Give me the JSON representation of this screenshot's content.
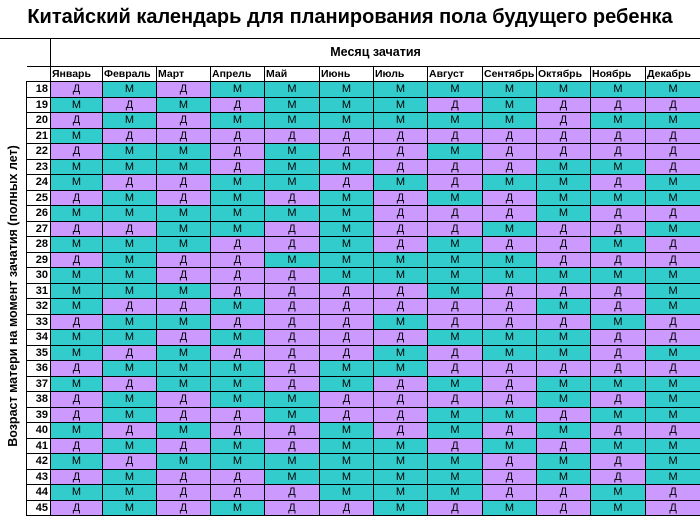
{
  "title": "Китайский календарь для планирования пола будущего ребенка",
  "column_group_label": "Месяц зачатия",
  "row_group_label": "Возраст матери на момент зачатия (полных лет)",
  "months": [
    "Январь",
    "Февраль",
    "Март",
    "Апрель",
    "Май",
    "Июнь",
    "Июль",
    "Август",
    "Сентябрь",
    "Октябрь",
    "Ноябрь",
    "Декабрь"
  ],
  "colors": {
    "M": "#33CCCC",
    "D": "#CC99FF"
  },
  "rows": [
    {
      "age": "18",
      "cells": [
        "Д",
        "М",
        "Д",
        "М",
        "М",
        "М",
        "М",
        "М",
        "М",
        "М",
        "М",
        "М"
      ]
    },
    {
      "age": "19",
      "cells": [
        "М",
        "Д",
        "М",
        "Д",
        "М",
        "М",
        "М",
        "Д",
        "М",
        "Д",
        "Д",
        "Д"
      ]
    },
    {
      "age": "20",
      "cells": [
        "Д",
        "М",
        "Д",
        "М",
        "М",
        "М",
        "М",
        "М",
        "М",
        "Д",
        "М",
        "М"
      ]
    },
    {
      "age": "21",
      "cells": [
        "М",
        "Д",
        "Д",
        "Д",
        "Д",
        "Д",
        "Д",
        "Д",
        "Д",
        "Д",
        "Д",
        "Д"
      ]
    },
    {
      "age": "22",
      "cells": [
        "Д",
        "М",
        "М",
        "Д",
        "М",
        "Д",
        "Д",
        "М",
        "Д",
        "Д",
        "Д",
        "Д"
      ]
    },
    {
      "age": "23",
      "cells": [
        "М",
        "М",
        "М",
        "Д",
        "М",
        "М",
        "Д",
        "Д",
        "Д",
        "М",
        "М",
        "Д"
      ]
    },
    {
      "age": "24",
      "cells": [
        "М",
        "Д",
        "Д",
        "М",
        "М",
        "Д",
        "М",
        "Д",
        "М",
        "М",
        "Д",
        "М"
      ]
    },
    {
      "age": "25",
      "cells": [
        "Д",
        "М",
        "Д",
        "М",
        "Д",
        "М",
        "Д",
        "М",
        "Д",
        "М",
        "М",
        "М"
      ]
    },
    {
      "age": "26",
      "cells": [
        "М",
        "М",
        "М",
        "М",
        "М",
        "М",
        "Д",
        "Д",
        "Д",
        "М",
        "Д",
        "Д"
      ]
    },
    {
      "age": "27",
      "cells": [
        "Д",
        "Д",
        "М",
        "М",
        "Д",
        "М",
        "Д",
        "Д",
        "М",
        "Д",
        "Д",
        "М"
      ]
    },
    {
      "age": "28",
      "cells": [
        "М",
        "М",
        "М",
        "Д",
        "Д",
        "М",
        "Д",
        "М",
        "Д",
        "Д",
        "М",
        "Д"
      ]
    },
    {
      "age": "29",
      "cells": [
        "Д",
        "М",
        "Д",
        "Д",
        "М",
        "М",
        "М",
        "М",
        "М",
        "Д",
        "Д",
        "Д"
      ]
    },
    {
      "age": "30",
      "cells": [
        "М",
        "М",
        "Д",
        "Д",
        "Д",
        "М",
        "М",
        "М",
        "М",
        "М",
        "М",
        "М"
      ]
    },
    {
      "age": "31",
      "cells": [
        "М",
        "М",
        "М",
        "Д",
        "Д",
        "Д",
        "Д",
        "М",
        "Д",
        "Д",
        "Д",
        "М"
      ]
    },
    {
      "age": "32",
      "cells": [
        "М",
        "Д",
        "Д",
        "М",
        "Д",
        "Д",
        "Д",
        "Д",
        "Д",
        "М",
        "Д",
        "М"
      ]
    },
    {
      "age": "33",
      "cells": [
        "Д",
        "М",
        "М",
        "Д",
        "Д",
        "Д",
        "М",
        "Д",
        "Д",
        "Д",
        "М",
        "Д"
      ]
    },
    {
      "age": "34",
      "cells": [
        "М",
        "М",
        "Д",
        "М",
        "Д",
        "Д",
        "Д",
        "М",
        "М",
        "М",
        "Д",
        "Д"
      ]
    },
    {
      "age": "35",
      "cells": [
        "М",
        "Д",
        "М",
        "Д",
        "Д",
        "Д",
        "М",
        "Д",
        "М",
        "М",
        "Д",
        "М"
      ]
    },
    {
      "age": "36",
      "cells": [
        "Д",
        "М",
        "М",
        "М",
        "Д",
        "М",
        "М",
        "Д",
        "Д",
        "Д",
        "Д",
        "Д"
      ]
    },
    {
      "age": "37",
      "cells": [
        "М",
        "Д",
        "М",
        "М",
        "Д",
        "М",
        "Д",
        "М",
        "Д",
        "М",
        "М",
        "М"
      ]
    },
    {
      "age": "38",
      "cells": [
        "Д",
        "М",
        "Д",
        "М",
        "М",
        "Д",
        "Д",
        "Д",
        "Д",
        "М",
        "Д",
        "М"
      ]
    },
    {
      "age": "39",
      "cells": [
        "Д",
        "М",
        "Д",
        "Д",
        "М",
        "Д",
        "Д",
        "М",
        "М",
        "Д",
        "М",
        "М"
      ]
    },
    {
      "age": "40",
      "cells": [
        "М",
        "Д",
        "М",
        "Д",
        "Д",
        "М",
        "Д",
        "М",
        "Д",
        "М",
        "Д",
        "Д"
      ]
    },
    {
      "age": "41",
      "cells": [
        "Д",
        "М",
        "Д",
        "М",
        "Д",
        "М",
        "М",
        "Д",
        "М",
        "Д",
        "М",
        "М"
      ]
    },
    {
      "age": "42",
      "cells": [
        "М",
        "Д",
        "М",
        "М",
        "М",
        "М",
        "М",
        "М",
        "Д",
        "М",
        "Д",
        "М"
      ]
    },
    {
      "age": "43",
      "cells": [
        "Д",
        "М",
        "Д",
        "Д",
        "М",
        "М",
        "М",
        "М",
        "Д",
        "М",
        "Д",
        "М"
      ]
    },
    {
      "age": "44",
      "cells": [
        "М",
        "М",
        "Д",
        "Д",
        "Д",
        "М",
        "М",
        "М",
        "Д",
        "Д",
        "М",
        "Д"
      ]
    },
    {
      "age": "45",
      "cells": [
        "Д",
        "М",
        "Д",
        "М",
        "Д",
        "Д",
        "М",
        "Д",
        "М",
        "Д",
        "М",
        "Д"
      ]
    }
  ]
}
